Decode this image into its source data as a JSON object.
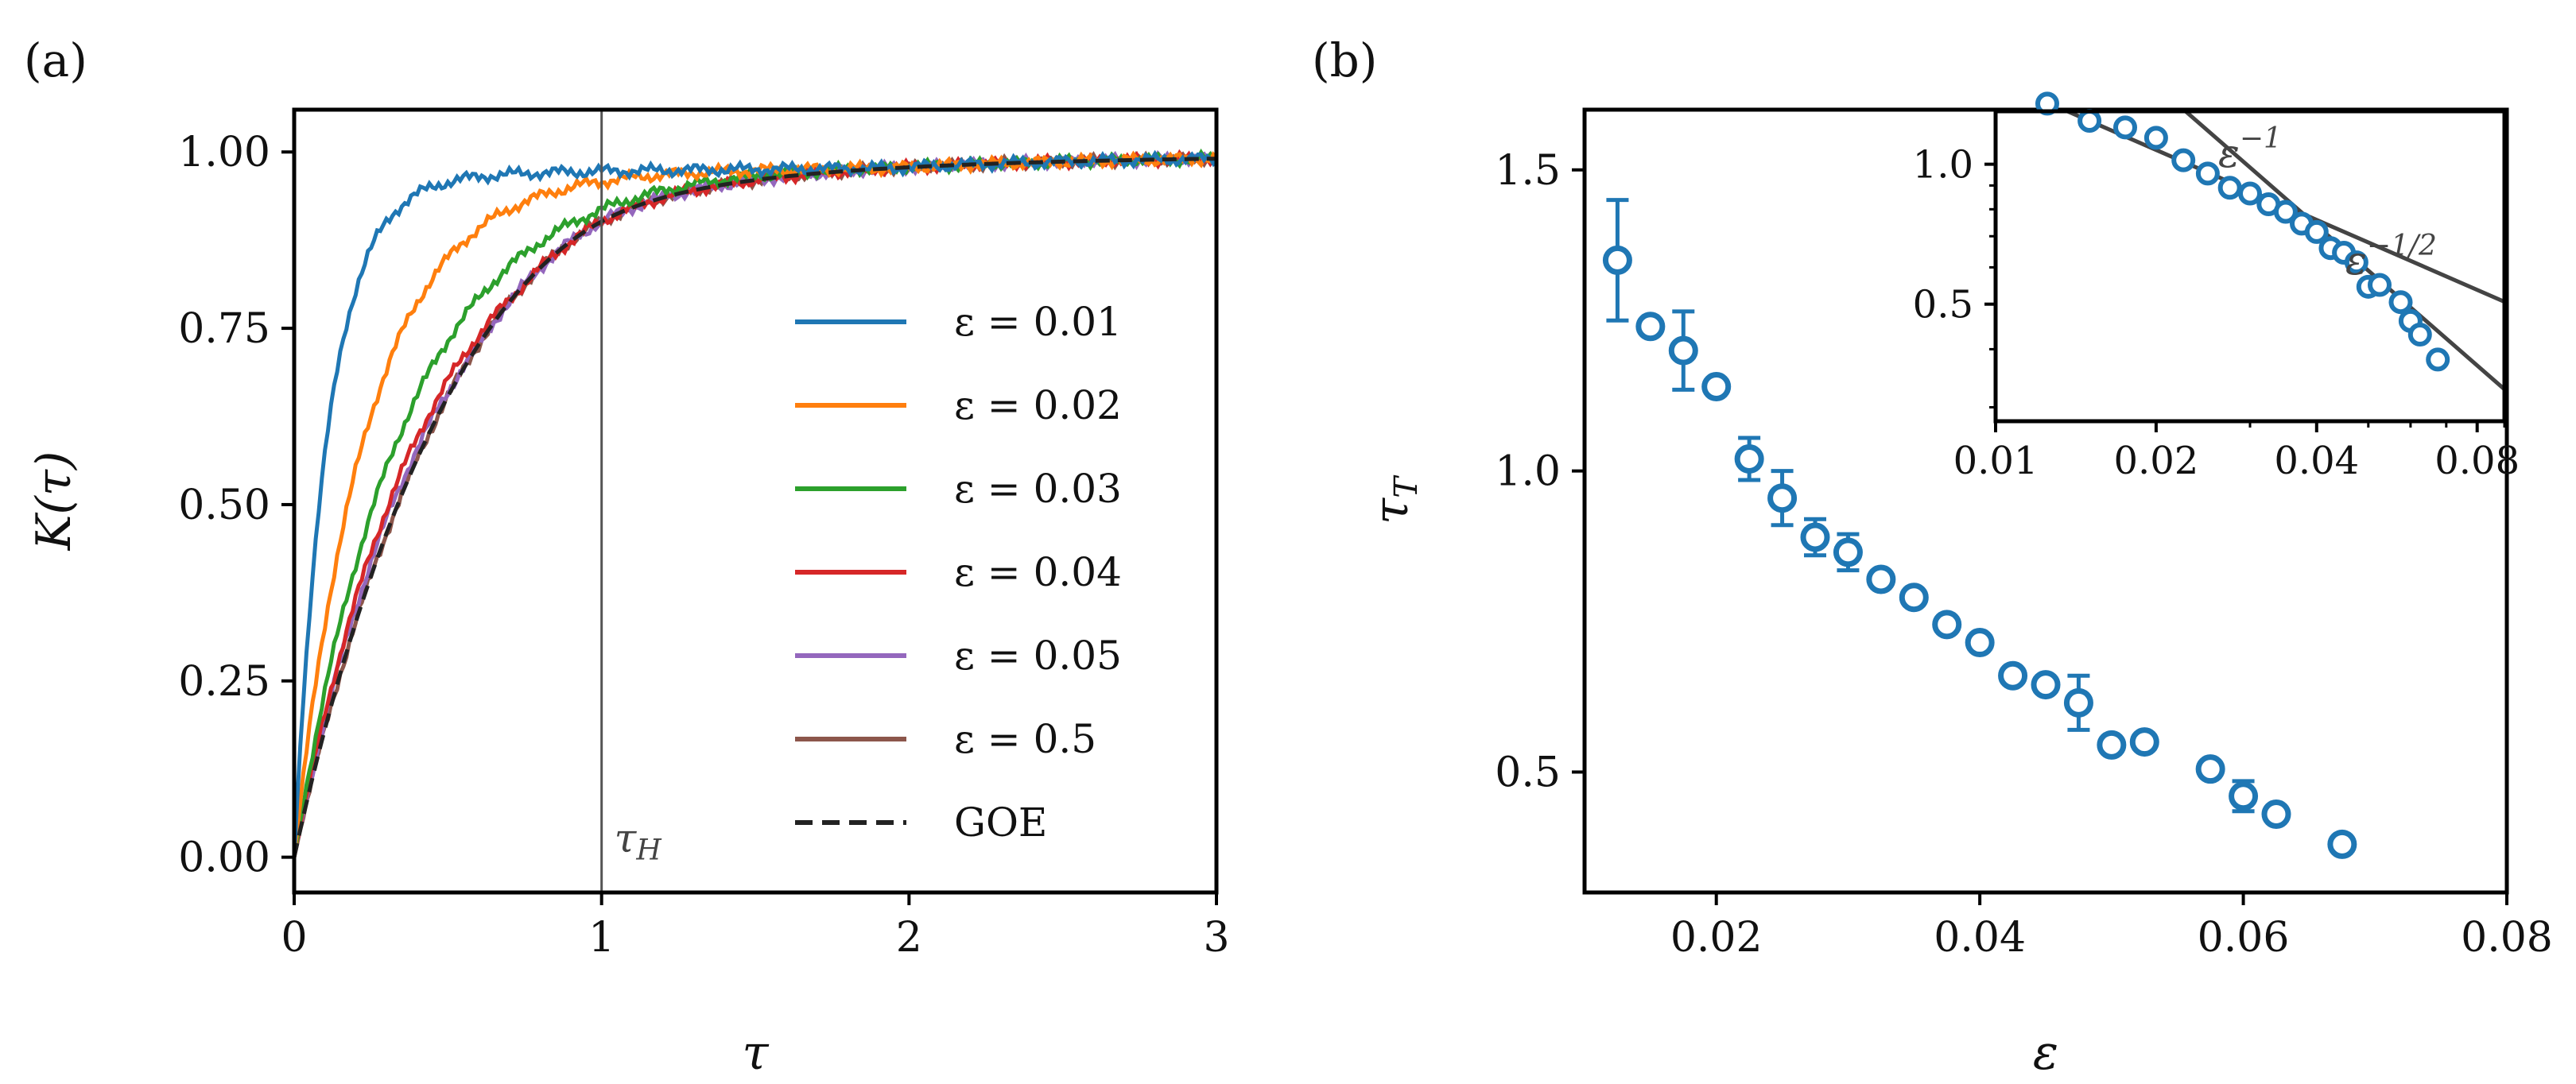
{
  "chart_data": [
    {
      "panel_label": "(a)",
      "type": "line",
      "xlabel": "τ",
      "ylabel": "K(τ)",
      "xlim": [
        0,
        3
      ],
      "ylim": [
        -0.05,
        1.06
      ],
      "xticks": [
        0,
        1,
        2,
        3
      ],
      "xtick_labels": [
        "0",
        "1",
        "2",
        "3"
      ],
      "yticks": [
        0.0,
        0.25,
        0.5,
        0.75,
        1.0
      ],
      "ytick_labels": [
        "0.00",
        "0.25",
        "0.50",
        "0.75",
        "1.00"
      ],
      "vline": {
        "x": 1,
        "label": "τH",
        "color": "#555555"
      },
      "legend_position": "center-right",
      "series": [
        {
          "name": "ε = 0.01",
          "color": "#1f77b4",
          "style": "solid",
          "asymptote": 0.98,
          "rate": 9.0
        },
        {
          "name": "ε = 0.02",
          "color": "#ff7f0e",
          "style": "solid",
          "asymptote": 0.98,
          "rate": 4.2
        },
        {
          "name": "ε = 0.03",
          "color": "#2ca02c",
          "style": "solid",
          "asymptote": 0.985,
          "rate": 2.8
        },
        {
          "name": "ε = 0.04",
          "color": "#d62728",
          "style": "solid",
          "asymptote": 0.99,
          "rate": 2.35
        },
        {
          "name": "ε = 0.05",
          "color": "#9467bd",
          "style": "solid",
          "asymptote": 0.99,
          "rate": 2.25
        },
        {
          "name": "ε = 0.5",
          "color": "#8c564b",
          "style": "solid",
          "asymptote": 0.99,
          "rate": 2.2
        },
        {
          "name": "GOE",
          "color": "#222222",
          "style": "dashed",
          "asymptote": 1.0,
          "rate": 0
        }
      ]
    },
    {
      "panel_label": "(b)",
      "type": "scatter",
      "xlabel": "ε",
      "ylabel": "τT",
      "xlim": [
        0.01,
        0.08
      ],
      "ylim": [
        0.3,
        1.6
      ],
      "xticks": [
        0.02,
        0.04,
        0.06,
        0.08
      ],
      "xtick_labels": [
        "0.02",
        "0.04",
        "0.06",
        "0.08"
      ],
      "yticks": [
        0.5,
        1.0,
        1.5
      ],
      "ytick_labels": [
        "0.5",
        "1.0",
        "1.5"
      ],
      "color": "#1f77b4",
      "x": [
        0.0125,
        0.015,
        0.0175,
        0.02,
        0.0225,
        0.025,
        0.0275,
        0.03,
        0.0325,
        0.035,
        0.0375,
        0.04,
        0.0425,
        0.045,
        0.0475,
        0.05,
        0.0525,
        0.0575,
        0.06,
        0.0625,
        0.0675
      ],
      "y": [
        1.35,
        1.24,
        1.2,
        1.14,
        1.02,
        0.955,
        0.89,
        0.865,
        0.82,
        0.79,
        0.745,
        0.715,
        0.66,
        0.645,
        0.615,
        0.545,
        0.55,
        0.505,
        0.46,
        0.43,
        0.38
      ],
      "yerr": [
        0.1,
        0.0,
        0.065,
        0.0,
        0.035,
        0.045,
        0.03,
        0.03,
        0.0,
        0.0,
        0.0,
        0.0,
        0.0,
        0.0,
        0.045,
        0.0,
        0.0,
        0.0,
        0.025,
        0.0,
        0.0
      ],
      "inset": {
        "type": "scatter",
        "xscale": "log",
        "yscale": "log",
        "xlim": [
          0.01,
          0.09
        ],
        "ylim": [
          0.28,
          1.3
        ],
        "xticks": [
          0.01,
          0.02,
          0.04,
          0.08
        ],
        "xtick_labels": [
          "0.01",
          "0.02",
          "0.04",
          "0.08"
        ],
        "yticks": [
          0.5,
          1.0
        ],
        "ytick_labels": [
          "0.5",
          "1.0"
        ],
        "lines": [
          {
            "label": "ε⁻¹",
            "label_text": "ε",
            "label_exp": "−1",
            "slope": -1,
            "anchor": [
              0.036,
              0.82
            ],
            "x_range": [
              0.0125,
              0.09
            ]
          },
          {
            "label": "ε⁻¹ᐟ²",
            "label_text": "ε",
            "label_exp": "−1/2",
            "slope": -0.5,
            "anchor": [
              0.036,
              0.8
            ],
            "x_range": [
              0.0095,
              0.09
            ]
          }
        ]
      }
    }
  ]
}
